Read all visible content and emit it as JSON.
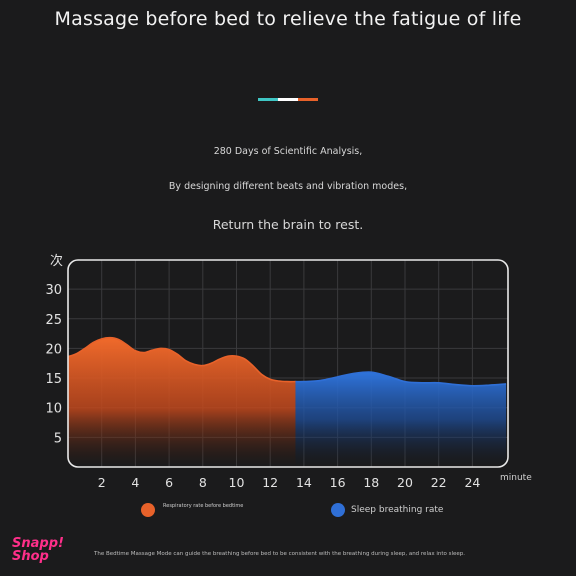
{
  "header": {
    "title": "Massage before bed to relieve the fatigue of life",
    "divider_colors": [
      "#3fc6c4",
      "#ffffff",
      "#e8622a"
    ]
  },
  "intro": {
    "line1": "280 Days of Scientific Analysis,",
    "line2": "By designing different beats and vibration modes,",
    "line3": "Return the brain to rest."
  },
  "chart_data": {
    "type": "area",
    "y_unit_label": "次",
    "x_unit_label": "minute",
    "xlim": [
      0,
      26
    ],
    "ylim": [
      0,
      35
    ],
    "x_ticks": [
      2,
      4,
      6,
      8,
      10,
      12,
      14,
      16,
      18,
      20,
      22,
      24
    ],
    "y_ticks": [
      5,
      10,
      15,
      20,
      25,
      30
    ],
    "grid": true,
    "series": [
      {
        "name": "Respiratory rate before bedtime",
        "color": "#e8622a",
        "x": [
          0,
          0.5,
          1,
          1.5,
          2,
          2.5,
          3,
          3.5,
          4,
          4.5,
          5,
          5.5,
          6,
          6.5,
          7,
          7.5,
          8,
          8.5,
          9,
          9.5,
          10,
          10.5,
          11,
          11.5,
          12,
          12.5,
          13,
          13.5
        ],
        "values": [
          18.6,
          19.1,
          20.0,
          21.0,
          21.6,
          21.8,
          21.5,
          20.6,
          19.6,
          19.3,
          19.7,
          20.0,
          19.8,
          19.0,
          17.9,
          17.3,
          17.1,
          17.5,
          18.2,
          18.7,
          18.7,
          18.2,
          17.0,
          15.6,
          14.8,
          14.5,
          14.4,
          14.4
        ]
      },
      {
        "name": "Sleep breathing rate",
        "color": "#2f6fd6",
        "x": [
          13.5,
          14,
          15,
          16,
          17,
          18,
          19,
          20,
          21,
          22,
          23,
          24,
          25,
          26
        ],
        "values": [
          14.4,
          14.4,
          14.6,
          15.2,
          15.8,
          16.0,
          15.3,
          14.4,
          14.2,
          14.2,
          13.9,
          13.7,
          13.8,
          14.0
        ]
      }
    ]
  },
  "legend": {
    "before_label": "Respiratory rate before bedtime",
    "sleep_label": "Sleep breathing rate"
  },
  "footer": {
    "note": "The Bedtime Massage Mode can guide the breathing before bed to be consistent with the breathing during sleep, and relax into sleep.",
    "logo_line1": "Snapp!",
    "logo_line2": "Shop"
  }
}
